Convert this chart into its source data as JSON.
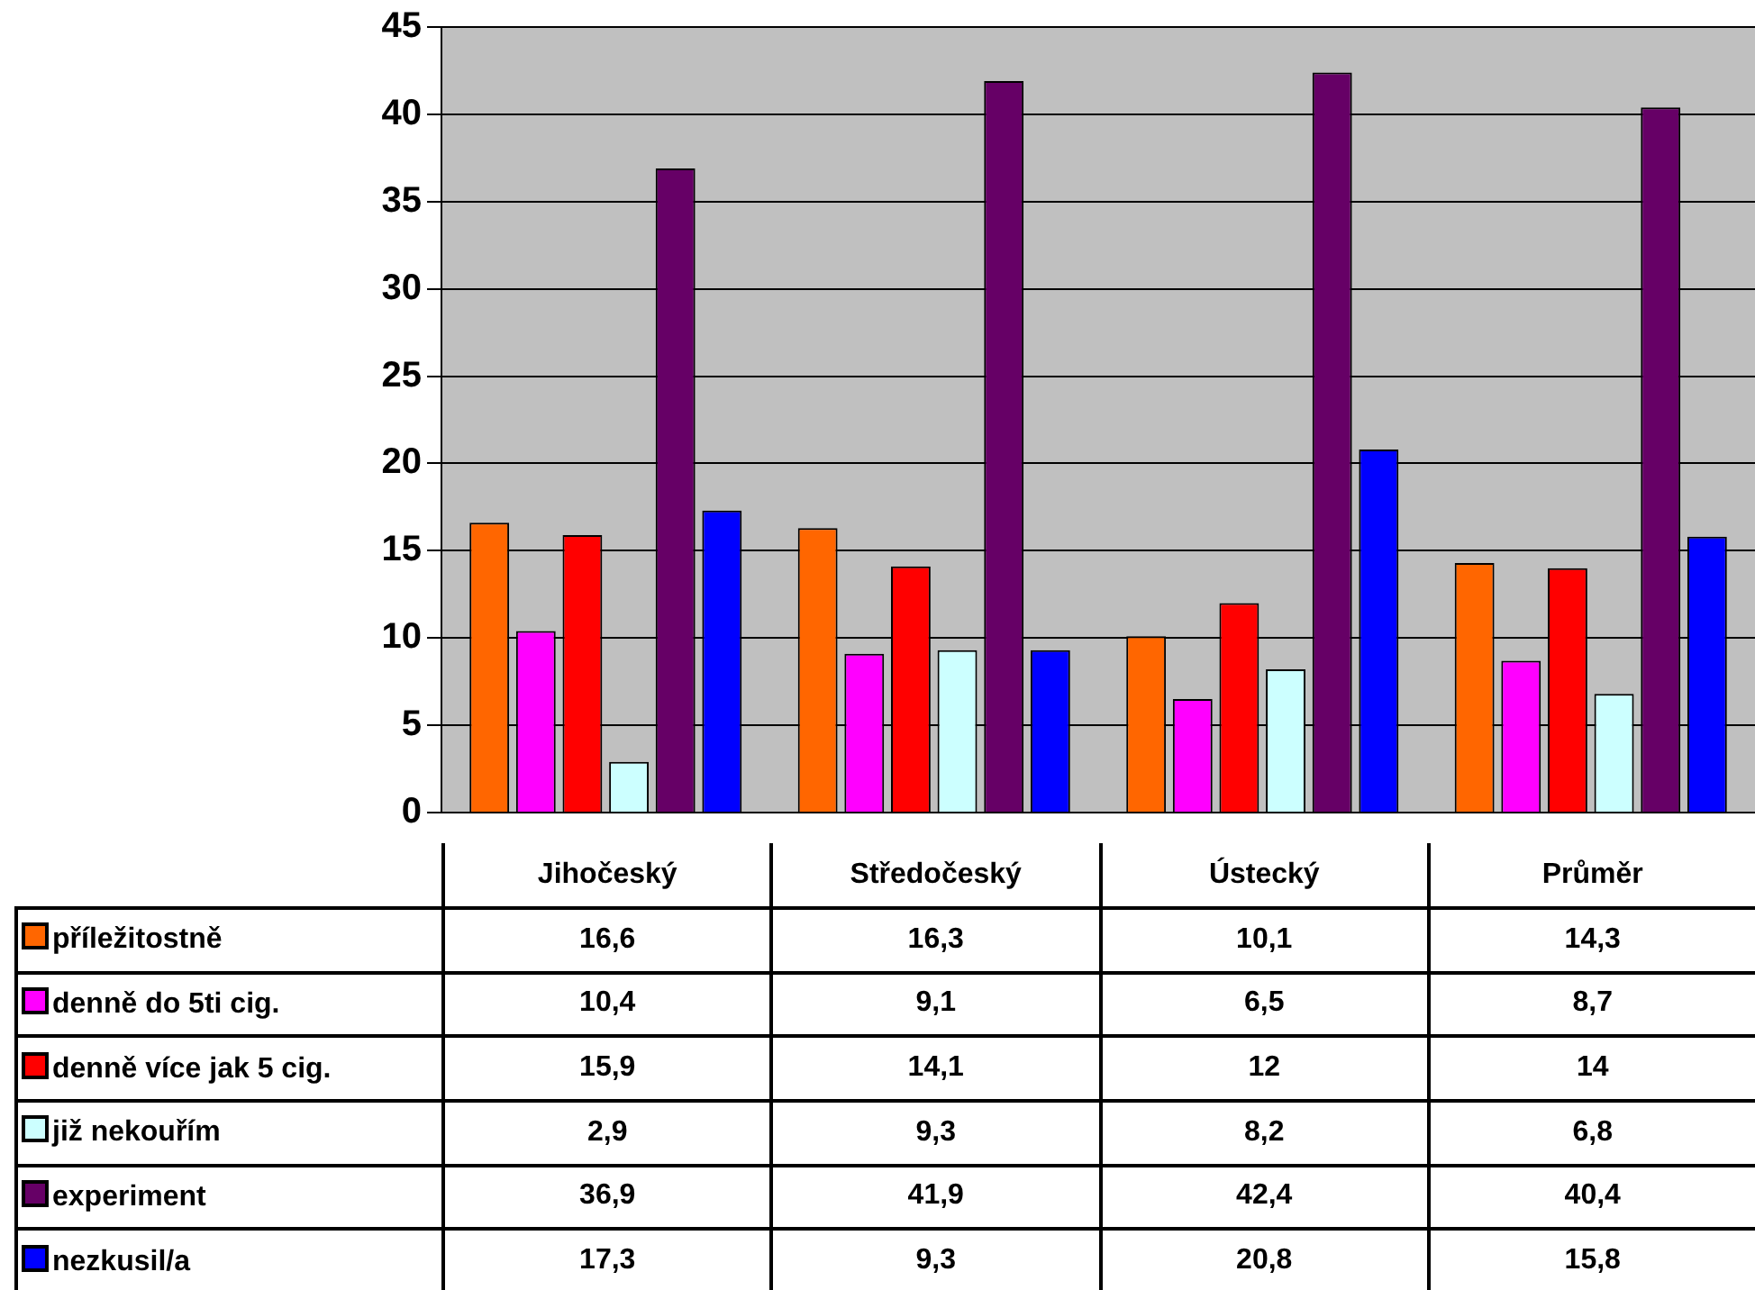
{
  "chart_data": {
    "type": "bar",
    "categories": [
      "Jihočeský",
      "Středočeský",
      "Ústecký",
      "Průměr"
    ],
    "series": [
      {
        "name": "příležitostně",
        "color": "#ff6600",
        "values": [
          16.6,
          16.3,
          10.1,
          14.3
        ],
        "value_labels": [
          "16,6",
          "16,3",
          "10,1",
          "14,3"
        ]
      },
      {
        "name": "denně do 5ti cig.",
        "color": "#ff00ff",
        "values": [
          10.4,
          9.1,
          6.5,
          8.7
        ],
        "value_labels": [
          "10,4",
          "9,1",
          "6,5",
          "8,7"
        ]
      },
      {
        "name": "denně více jak 5 cig.",
        "color": "#ff0000",
        "values": [
          15.9,
          14.1,
          12,
          14
        ],
        "value_labels": [
          "15,9",
          "14,1",
          "12",
          "14"
        ]
      },
      {
        "name": "již nekouřím",
        "color": "#ccffff",
        "values": [
          2.9,
          9.3,
          8.2,
          6.8
        ],
        "value_labels": [
          "2,9",
          "9,3",
          "8,2",
          "6,8"
        ]
      },
      {
        "name": "experiment",
        "color": "#660066",
        "values": [
          36.9,
          41.9,
          42.4,
          40.4
        ],
        "value_labels": [
          "36,9",
          "41,9",
          "42,4",
          "40,4"
        ]
      },
      {
        "name": "nezkusil/a",
        "color": "#0000ff",
        "values": [
          17.3,
          9.3,
          20.8,
          15.8
        ],
        "value_labels": [
          "17,3",
          "9,3",
          "20,8",
          "15,8"
        ]
      }
    ],
    "ylim": [
      0,
      45
    ],
    "yticks": [
      0,
      5,
      10,
      15,
      20,
      25,
      30,
      35,
      40,
      45
    ],
    "grid": "y",
    "legend": "bottom"
  }
}
